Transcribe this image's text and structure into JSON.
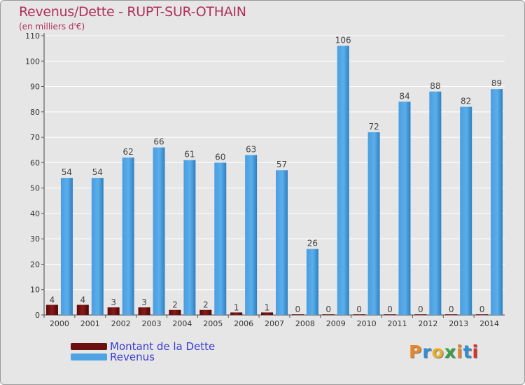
{
  "title": "Revenus/Dette - RUPT-SUR-OTHAIN",
  "subtitle": "(en milliers d'€)",
  "chart_data": {
    "type": "bar",
    "title": "Revenus/Dette - RUPT-SUR-OTHAIN",
    "subtitle": "(en milliers d'€)",
    "xlabel": "",
    "ylabel": "",
    "ylim": [
      0,
      110
    ],
    "yticks": [
      0,
      10,
      20,
      30,
      40,
      50,
      60,
      70,
      80,
      90,
      100,
      110
    ],
    "grid": true,
    "legend_position": "bottom-left",
    "categories": [
      "2000",
      "2001",
      "2002",
      "2003",
      "2004",
      "2005",
      "2006",
      "2007",
      "2008",
      "2009",
      "2010",
      "2011",
      "2012",
      "2013",
      "2014"
    ],
    "series": [
      {
        "name": "Montant de la Dette",
        "color": "#6b0f0f",
        "values": [
          4,
          4,
          3,
          3,
          2,
          2,
          1,
          1,
          0,
          0,
          0,
          0,
          0,
          0,
          0
        ]
      },
      {
        "name": "Revenus",
        "color": "#4fa3e3",
        "values": [
          54,
          54,
          62,
          66,
          61,
          60,
          63,
          57,
          26,
          106,
          72,
          84,
          88,
          82,
          89
        ]
      }
    ]
  },
  "logo": {
    "text": "Proxiti",
    "letter_colors": [
      "#e8862a",
      "#2f8fd6",
      "#e8b02a",
      "#3aa048",
      "#e8862a",
      "#2f8fd6",
      "#d6342a"
    ]
  }
}
